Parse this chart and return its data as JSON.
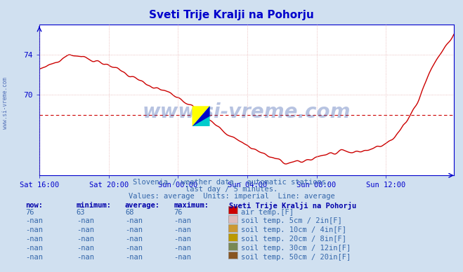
{
  "title": "Sveti Trije Kralji na Pohorju",
  "title_color": "#0000cc",
  "bg_color": "#d0e0f0",
  "plot_bg_color": "#ffffff",
  "grid_color": "#dd9999",
  "axis_color": "#0000cc",
  "line_color": "#cc0000",
  "line_width": 1.0,
  "yticks": [
    70,
    74
  ],
  "ylim": [
    62.0,
    77.0
  ],
  "x_tick_labels": [
    "Sat 16:00",
    "Sat 20:00",
    "Sun 00:00",
    "Sun 04:00",
    "Sun 08:00",
    "Sun 12:00"
  ],
  "x_tick_positions": [
    0,
    48,
    96,
    144,
    192,
    240
  ],
  "n_points": 288,
  "avg_line_y": 68.0,
  "watermark": "www.si-vreme.com",
  "watermark_color": "#3355aa",
  "watermark_alpha": 0.35,
  "side_watermark": "www.si-vreme.com",
  "subtitle1": "Slovenia / weather data - automatic stations.",
  "subtitle2": "last day / 5 minutes.",
  "subtitle3": "Values: average  Units: imperial  Line: average",
  "subtitle_color": "#3366aa",
  "table_header_color": "#0000aa",
  "table_value_color": "#3366aa",
  "legend_title": "Sveti Trije Kralji na Pohorju",
  "legend_items": [
    {
      "label": "air temp.[F]",
      "color": "#cc0000"
    },
    {
      "label": "soil temp. 5cm / 2in[F]",
      "color": "#ddbbbb"
    },
    {
      "label": "soil temp. 10cm / 4in[F]",
      "color": "#cc9933"
    },
    {
      "label": "soil temp. 20cm / 8in[F]",
      "color": "#bb9900"
    },
    {
      "label": "soil temp. 30cm / 12in[F]",
      "color": "#778855"
    },
    {
      "label": "soil temp. 50cm / 20in[F]",
      "color": "#885522"
    }
  ],
  "table_rows": [
    {
      "now": "76",
      "min": "63",
      "avg": "68",
      "max": "76"
    },
    {
      "now": "-nan",
      "min": "-nan",
      "avg": "-nan",
      "max": "-nan"
    },
    {
      "now": "-nan",
      "min": "-nan",
      "avg": "-nan",
      "max": "-nan"
    },
    {
      "now": "-nan",
      "min": "-nan",
      "avg": "-nan",
      "max": "-nan"
    },
    {
      "now": "-nan",
      "min": "-nan",
      "avg": "-nan",
      "max": "-nan"
    },
    {
      "now": "-nan",
      "min": "-nan",
      "avg": "-nan",
      "max": "-nan"
    }
  ],
  "key_x": [
    0,
    10,
    20,
    30,
    48,
    72,
    96,
    120,
    144,
    160,
    175,
    185,
    195,
    210,
    225,
    240,
    255,
    265,
    275,
    285,
    287
  ],
  "key_y": [
    72.5,
    73.2,
    74.0,
    73.8,
    73.0,
    71.2,
    69.8,
    67.2,
    65.0,
    63.8,
    63.2,
    63.5,
    64.0,
    64.2,
    64.5,
    65.2,
    67.5,
    70.5,
    73.5,
    75.5,
    76.0
  ]
}
